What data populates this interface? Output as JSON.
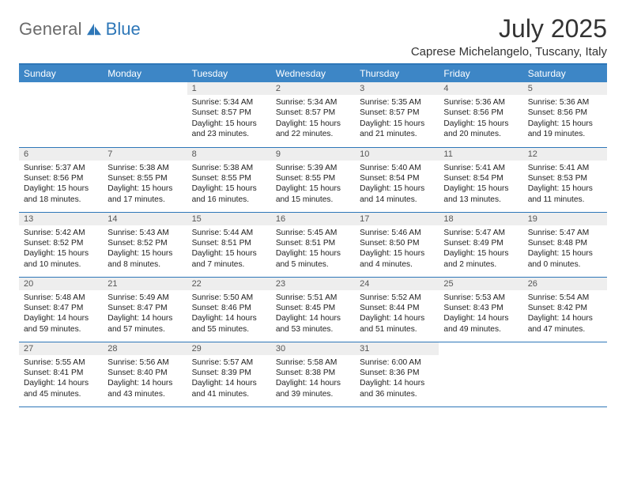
{
  "brand": {
    "part1": "General",
    "part2": "Blue"
  },
  "title": "July 2025",
  "subtitle": "Caprese Michelangelo, Tuscany, Italy",
  "colors": {
    "accent": "#3d86c6",
    "border": "#2e77b8",
    "shade": "#eeeeee"
  },
  "weekdays": [
    "Sunday",
    "Monday",
    "Tuesday",
    "Wednesday",
    "Thursday",
    "Friday",
    "Saturday"
  ],
  "startOffset": 2,
  "days": [
    {
      "n": 1,
      "sr": "5:34 AM",
      "ss": "8:57 PM",
      "dl": "15 hours and 23 minutes."
    },
    {
      "n": 2,
      "sr": "5:34 AM",
      "ss": "8:57 PM",
      "dl": "15 hours and 22 minutes."
    },
    {
      "n": 3,
      "sr": "5:35 AM",
      "ss": "8:57 PM",
      "dl": "15 hours and 21 minutes."
    },
    {
      "n": 4,
      "sr": "5:36 AM",
      "ss": "8:56 PM",
      "dl": "15 hours and 20 minutes."
    },
    {
      "n": 5,
      "sr": "5:36 AM",
      "ss": "8:56 PM",
      "dl": "15 hours and 19 minutes."
    },
    {
      "n": 6,
      "sr": "5:37 AM",
      "ss": "8:56 PM",
      "dl": "15 hours and 18 minutes."
    },
    {
      "n": 7,
      "sr": "5:38 AM",
      "ss": "8:55 PM",
      "dl": "15 hours and 17 minutes."
    },
    {
      "n": 8,
      "sr": "5:38 AM",
      "ss": "8:55 PM",
      "dl": "15 hours and 16 minutes."
    },
    {
      "n": 9,
      "sr": "5:39 AM",
      "ss": "8:55 PM",
      "dl": "15 hours and 15 minutes."
    },
    {
      "n": 10,
      "sr": "5:40 AM",
      "ss": "8:54 PM",
      "dl": "15 hours and 14 minutes."
    },
    {
      "n": 11,
      "sr": "5:41 AM",
      "ss": "8:54 PM",
      "dl": "15 hours and 13 minutes."
    },
    {
      "n": 12,
      "sr": "5:41 AM",
      "ss": "8:53 PM",
      "dl": "15 hours and 11 minutes."
    },
    {
      "n": 13,
      "sr": "5:42 AM",
      "ss": "8:52 PM",
      "dl": "15 hours and 10 minutes."
    },
    {
      "n": 14,
      "sr": "5:43 AM",
      "ss": "8:52 PM",
      "dl": "15 hours and 8 minutes."
    },
    {
      "n": 15,
      "sr": "5:44 AM",
      "ss": "8:51 PM",
      "dl": "15 hours and 7 minutes."
    },
    {
      "n": 16,
      "sr": "5:45 AM",
      "ss": "8:51 PM",
      "dl": "15 hours and 5 minutes."
    },
    {
      "n": 17,
      "sr": "5:46 AM",
      "ss": "8:50 PM",
      "dl": "15 hours and 4 minutes."
    },
    {
      "n": 18,
      "sr": "5:47 AM",
      "ss": "8:49 PM",
      "dl": "15 hours and 2 minutes."
    },
    {
      "n": 19,
      "sr": "5:47 AM",
      "ss": "8:48 PM",
      "dl": "15 hours and 0 minutes."
    },
    {
      "n": 20,
      "sr": "5:48 AM",
      "ss": "8:47 PM",
      "dl": "14 hours and 59 minutes."
    },
    {
      "n": 21,
      "sr": "5:49 AM",
      "ss": "8:47 PM",
      "dl": "14 hours and 57 minutes."
    },
    {
      "n": 22,
      "sr": "5:50 AM",
      "ss": "8:46 PM",
      "dl": "14 hours and 55 minutes."
    },
    {
      "n": 23,
      "sr": "5:51 AM",
      "ss": "8:45 PM",
      "dl": "14 hours and 53 minutes."
    },
    {
      "n": 24,
      "sr": "5:52 AM",
      "ss": "8:44 PM",
      "dl": "14 hours and 51 minutes."
    },
    {
      "n": 25,
      "sr": "5:53 AM",
      "ss": "8:43 PM",
      "dl": "14 hours and 49 minutes."
    },
    {
      "n": 26,
      "sr": "5:54 AM",
      "ss": "8:42 PM",
      "dl": "14 hours and 47 minutes."
    },
    {
      "n": 27,
      "sr": "5:55 AM",
      "ss": "8:41 PM",
      "dl": "14 hours and 45 minutes."
    },
    {
      "n": 28,
      "sr": "5:56 AM",
      "ss": "8:40 PM",
      "dl": "14 hours and 43 minutes."
    },
    {
      "n": 29,
      "sr": "5:57 AM",
      "ss": "8:39 PM",
      "dl": "14 hours and 41 minutes."
    },
    {
      "n": 30,
      "sr": "5:58 AM",
      "ss": "8:38 PM",
      "dl": "14 hours and 39 minutes."
    },
    {
      "n": 31,
      "sr": "6:00 AM",
      "ss": "8:36 PM",
      "dl": "14 hours and 36 minutes."
    }
  ],
  "labels": {
    "sunrise": "Sunrise: ",
    "sunset": "Sunset: ",
    "daylight": "Daylight: "
  }
}
